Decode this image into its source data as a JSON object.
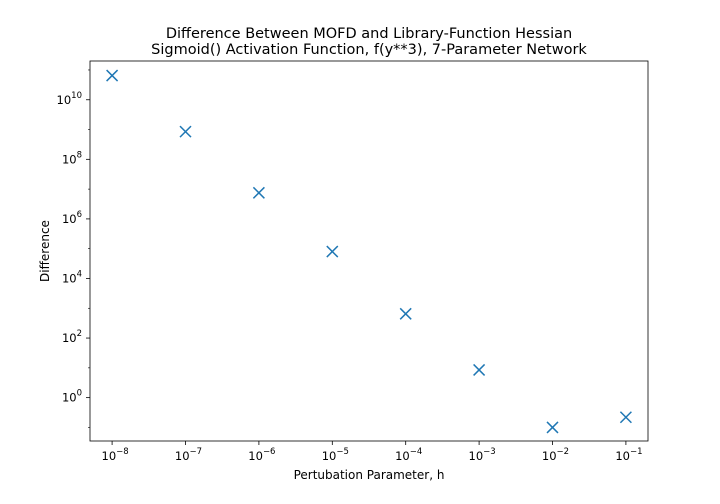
{
  "chart_data": {
    "type": "scatter",
    "title": "Difference Between MOFD and Library-Function Hessian",
    "subtitle": "Sigmoid() Activation Function, f(y**3), 7-Parameter Network",
    "xlabel": "Pertubation Parameter, h",
    "ylabel": "Difference",
    "xscale": "log",
    "yscale": "log",
    "xlim": [
      5e-09,
      0.2
    ],
    "ylim": [
      0.035,
      200000000000.0
    ],
    "x_ticks": [
      {
        "value": 1e-08,
        "base": "10",
        "exp": "−8"
      },
      {
        "value": 1e-07,
        "base": "10",
        "exp": "−7"
      },
      {
        "value": 1e-06,
        "base": "10",
        "exp": "−6"
      },
      {
        "value": 1e-05,
        "base": "10",
        "exp": "−5"
      },
      {
        "value": 0.0001,
        "base": "10",
        "exp": "−4"
      },
      {
        "value": 0.001,
        "base": "10",
        "exp": "−3"
      },
      {
        "value": 0.01,
        "base": "10",
        "exp": "−2"
      },
      {
        "value": 0.1,
        "base": "10",
        "exp": "−1"
      }
    ],
    "y_ticks": [
      {
        "value": 1,
        "base": "10",
        "exp": "0"
      },
      {
        "value": 100,
        "base": "10",
        "exp": "2"
      },
      {
        "value": 10000,
        "base": "10",
        "exp": "4"
      },
      {
        "value": 1000000,
        "base": "10",
        "exp": "6"
      },
      {
        "value": 100000000,
        "base": "10",
        "exp": "8"
      },
      {
        "value": 10000000000,
        "base": "10",
        "exp": "10"
      }
    ],
    "marker": "x",
    "color": "#1f77b4",
    "grid": false,
    "series": [
      {
        "x": [
          1e-08,
          1e-07,
          1e-06,
          1e-05,
          0.0001,
          0.001,
          0.01,
          0.1
        ],
        "y": [
          65000000000.0,
          850000000.0,
          7500000.0,
          80000.0,
          650.0,
          8.5,
          0.1,
          0.22
        ]
      }
    ]
  }
}
